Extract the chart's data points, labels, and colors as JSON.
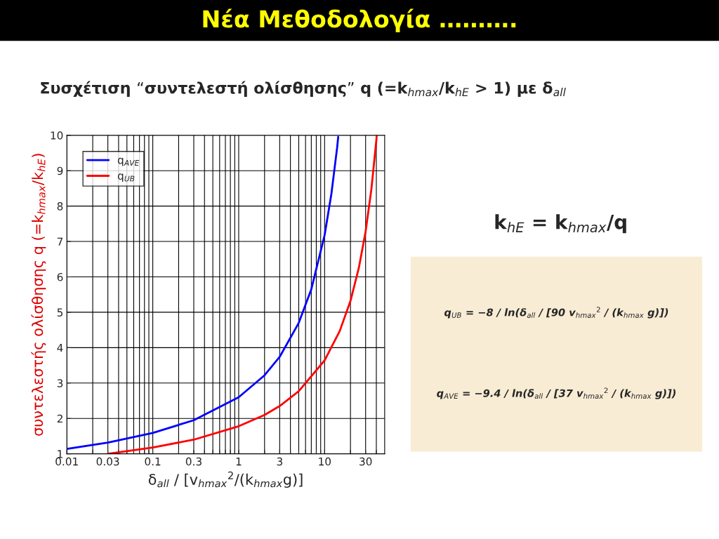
{
  "chart_data": {
    "type": "line",
    "title": "Νέα Μεθοδολογία ……….",
    "subtitle": "Συσχέτιση “συντελεστή ολίσθησης” q (=k$_{hmax}$/k$_{hE}$ > 1) με δ$_{all}$",
    "xlabel": "δ$_{all}$ / [v$_{hmax}$$^{2}$/(k$_{hmax}$g)]",
    "ylabel": "συντελεστής ολίσθησης q (=k$_{hmax}$/k$_{hE}$)",
    "log": "x",
    "xlim": [
      0.01,
      50
    ],
    "ylim": [
      1,
      10
    ],
    "xticks": [
      {
        "value": 0.01,
        "label": "0.01"
      },
      {
        "value": 0.02,
        "label": null
      },
      {
        "value": 0.03,
        "label": "0.03"
      },
      {
        "value": 0.04,
        "label": null
      },
      {
        "value": 0.05,
        "label": null
      },
      {
        "value": 0.06,
        "label": null
      },
      {
        "value": 0.07,
        "label": null
      },
      {
        "value": 0.08,
        "label": null
      },
      {
        "value": 0.09,
        "label": null
      },
      {
        "value": 0.1,
        "label": "0.1"
      },
      {
        "value": 0.2,
        "label": null
      },
      {
        "value": 0.3,
        "label": "0.3"
      },
      {
        "value": 0.4,
        "label": null
      },
      {
        "value": 0.5,
        "label": null
      },
      {
        "value": 0.6,
        "label": null
      },
      {
        "value": 0.7,
        "label": null
      },
      {
        "value": 0.8,
        "label": null
      },
      {
        "value": 0.9,
        "label": null
      },
      {
        "value": 1,
        "label": "1"
      },
      {
        "value": 2,
        "label": null
      },
      {
        "value": 3,
        "label": "3"
      },
      {
        "value": 4,
        "label": null
      },
      {
        "value": 5,
        "label": null
      },
      {
        "value": 6,
        "label": null
      },
      {
        "value": 7,
        "label": null
      },
      {
        "value": 8,
        "label": null
      },
      {
        "value": 9,
        "label": null
      },
      {
        "value": 10,
        "label": "10"
      },
      {
        "value": 20,
        "label": null
      },
      {
        "value": 30,
        "label": "30"
      },
      {
        "value": 40,
        "label": null
      }
    ],
    "yticks": [
      1,
      2,
      3,
      4,
      5,
      6,
      7,
      8,
      9,
      10
    ],
    "grid": true,
    "legend": "top left",
    "marker": "none",
    "line_style": "solid",
    "series": [
      {
        "name": "q$_{AVE}$",
        "color": "#0000ff",
        "x": [
          0.01,
          0.03,
          0.1,
          0.3,
          1,
          2,
          3,
          5,
          7,
          10,
          12,
          14,
          14.4
        ],
        "values": [
          1.14,
          1.32,
          1.59,
          1.95,
          2.6,
          3.22,
          3.74,
          4.7,
          5.65,
          7.18,
          8.35,
          9.66,
          9.96
        ]
      },
      {
        "name": "q$_{UB}$",
        "color": "#ff0000",
        "x": [
          0.03,
          0.1,
          0.3,
          1,
          2,
          3,
          5,
          10,
          15,
          20,
          25,
          30,
          35,
          40,
          40.4
        ],
        "values": [
          1.0,
          1.18,
          1.4,
          1.78,
          2.1,
          2.35,
          2.77,
          3.64,
          4.47,
          5.32,
          6.25,
          7.28,
          8.47,
          9.86,
          9.99
        ]
      }
    ],
    "annotations": [
      "k$_{hE}$ = k$_{hmax}$/q",
      "q$_{UB}$ = −8 / ln(δ$_{all}$ / [90 v$_{hmax}$$^{2}$ / (k$_{hmax}$ g)])",
      "q$_{AVE}$ = −9.4 / ln(δ$_{all}$ / [37 v$_{hmax}$$^{2}$ / (k$_{hmax}$ g)])"
    ]
  }
}
